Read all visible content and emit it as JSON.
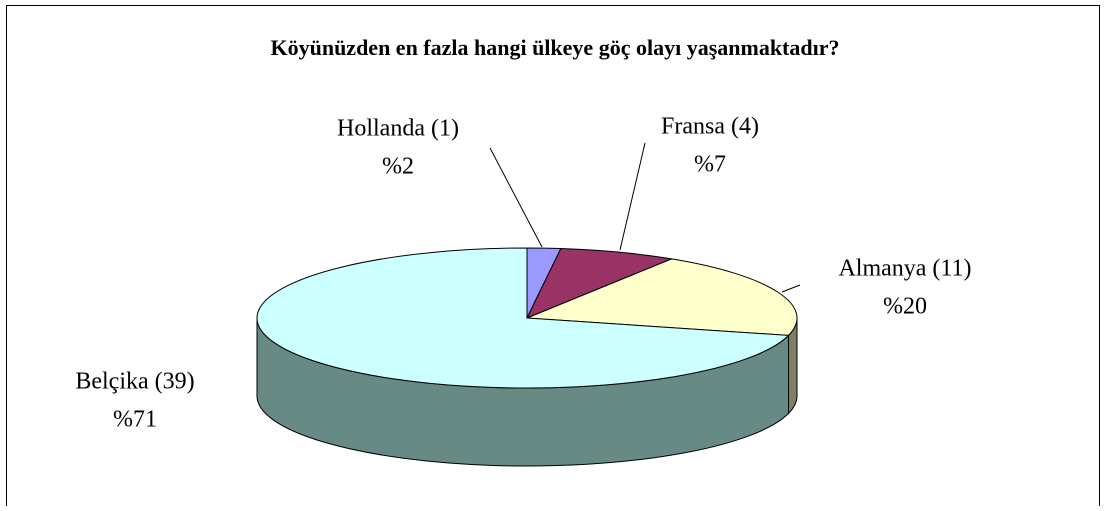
{
  "chart_data": {
    "type": "pie3d",
    "title": "Köyünüzden en fazla hangi ülkeye göç olayı yaşanmaktadır?",
    "categories": [
      "Hollanda (1)",
      "Fransa (4)",
      "Almanya (11)",
      "Belçika (39)"
    ],
    "values": [
      2,
      7,
      20,
      71
    ],
    "value_labels": [
      "%2",
      "%7",
      "%20",
      "%71"
    ],
    "colors": [
      "#9999ff",
      "#993366",
      "#ffffcc",
      "#ccffff"
    ],
    "side_colors": [
      "#5c5c99",
      "#5c1f3d",
      "#7f7f66",
      "#678a85"
    ]
  }
}
